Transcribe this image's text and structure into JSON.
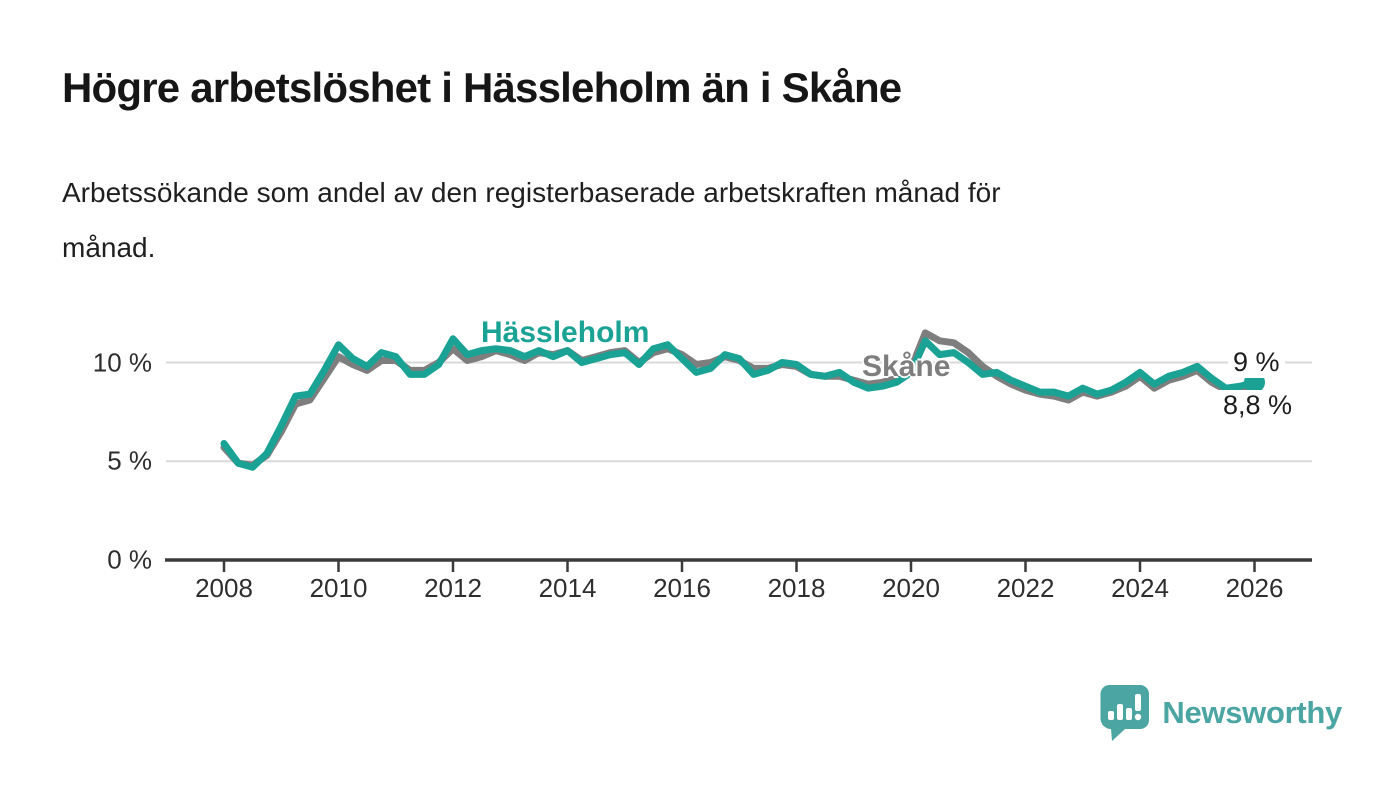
{
  "header": {
    "title": "Högre arbetslöshet i Hässleholm än i Skåne",
    "subtitle_lines": [
      "Arbetssökande som andel av den registerbaserade arbetskraften månad för",
      "månad."
    ]
  },
  "chart": {
    "y_ticks": [
      "10 %",
      "5 %",
      "0 %"
    ],
    "x_ticks": [
      "2008",
      "2010",
      "2012",
      "2014",
      "2016",
      "2018",
      "2020",
      "2022",
      "2024",
      "2026"
    ],
    "series_labels": {
      "hassleholm": "Hässleholm",
      "skane": "Skåne"
    },
    "end_labels": {
      "top": "9 %",
      "bottom": "8,8 %"
    },
    "colors": {
      "hassleholm": "#1AA295",
      "skane": "#7E7E7E",
      "grid": "#D9D9D9",
      "axis": "#3B3B3B",
      "tick_text": "#2E2E2E"
    }
  },
  "chart_data": {
    "type": "line",
    "title": "Högre arbetslöshet i Hässleholm än i Skåne",
    "subtitle": "Arbetssökande som andel av den registerbaserade arbetskraften månad för månad.",
    "xlabel": "",
    "ylabel": "",
    "x_unit": "year (monthly data, sampled quarterly)",
    "y_unit": "percent",
    "ylim": [
      0,
      12
    ],
    "y_ticks_percent": [
      0,
      5,
      10
    ],
    "x_ticks_years": [
      2008,
      2010,
      2012,
      2014,
      2016,
      2018,
      2020,
      2022,
      2024,
      2026
    ],
    "grid": "horizontal",
    "legend_position": "inline-labels",
    "end_point_labels": {
      "hassleholm": "9 %",
      "skane": "8,8 %"
    },
    "x": [
      2008,
      2008.25,
      2008.5,
      2008.75,
      2009,
      2009.25,
      2009.5,
      2009.75,
      2010,
      2010.25,
      2010.5,
      2010.75,
      2011,
      2011.25,
      2011.5,
      2011.75,
      2012,
      2012.25,
      2012.5,
      2012.75,
      2013,
      2013.25,
      2013.5,
      2013.75,
      2014,
      2014.25,
      2014.5,
      2014.75,
      2015,
      2015.25,
      2015.5,
      2015.75,
      2016,
      2016.25,
      2016.5,
      2016.75,
      2017,
      2017.25,
      2017.5,
      2017.75,
      2018,
      2018.25,
      2018.5,
      2018.75,
      2019,
      2019.25,
      2019.5,
      2019.75,
      2020,
      2020.25,
      2020.5,
      2020.75,
      2021,
      2021.25,
      2021.5,
      2021.75,
      2022,
      2022.25,
      2022.5,
      2022.75,
      2023,
      2023.25,
      2023.5,
      2023.75,
      2024,
      2024.25,
      2024.5,
      2024.75,
      2025,
      2025.25,
      2025.5,
      2025.75,
      2026
    ],
    "series": [
      {
        "name": "Hässleholm",
        "key": "hassleholm",
        "color": "#1AA295",
        "last_value_label": "9 %",
        "values": [
          5.9,
          4.9,
          4.7,
          5.4,
          6.8,
          8.3,
          8.4,
          9.6,
          10.9,
          10.2,
          9.8,
          10.5,
          10.3,
          9.4,
          9.4,
          9.9,
          11.2,
          10.4,
          10.6,
          10.7,
          10.6,
          10.3,
          10.6,
          10.3,
          10.6,
          10.0,
          10.2,
          10.4,
          10.5,
          9.9,
          10.7,
          10.9,
          10.2,
          9.5,
          9.7,
          10.4,
          10.2,
          9.4,
          9.6,
          10.0,
          9.9,
          9.4,
          9.3,
          9.5,
          9.0,
          8.7,
          8.8,
          9.0,
          9.5,
          11.1,
          10.4,
          10.5,
          10.0,
          9.4,
          9.5,
          9.1,
          8.8,
          8.5,
          8.5,
          8.3,
          8.7,
          8.4,
          8.6,
          9.0,
          9.5,
          8.9,
          9.3,
          9.5,
          9.8,
          9.2,
          8.7,
          8.8,
          9.0
        ]
      },
      {
        "name": "Skåne",
        "key": "skane",
        "color": "#7E7E7E",
        "last_value_label": "8,8 %",
        "values": [
          5.7,
          4.9,
          4.8,
          5.3,
          6.5,
          7.9,
          8.1,
          9.2,
          10.3,
          9.9,
          9.6,
          10.1,
          10.1,
          9.6,
          9.6,
          10.0,
          10.7,
          10.1,
          10.3,
          10.6,
          10.4,
          10.1,
          10.5,
          10.4,
          10.6,
          10.1,
          10.3,
          10.5,
          10.6,
          10.0,
          10.5,
          10.7,
          10.4,
          9.9,
          10.0,
          10.3,
          10.1,
          9.7,
          9.7,
          9.9,
          9.8,
          9.4,
          9.3,
          9.3,
          9.1,
          8.9,
          9.0,
          9.2,
          9.7,
          11.5,
          11.1,
          11.0,
          10.5,
          9.8,
          9.3,
          8.9,
          8.6,
          8.4,
          8.3,
          8.1,
          8.5,
          8.3,
          8.5,
          8.8,
          9.3,
          8.7,
          9.1,
          9.3,
          9.6,
          9.0,
          8.6,
          8.6,
          8.8
        ]
      }
    ]
  },
  "footer": {
    "brand": "Newsworthy"
  }
}
